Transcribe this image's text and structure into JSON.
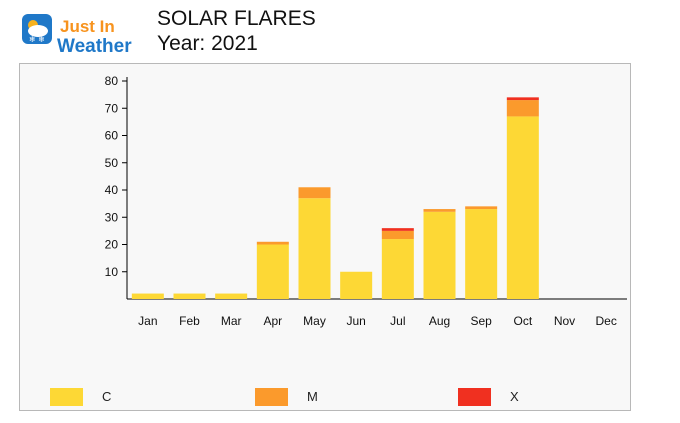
{
  "header": {
    "logo_text": [
      "Just In",
      "Weather"
    ],
    "title": "SOLAR FLARES",
    "subtitle": "Year: 2021"
  },
  "colors": {
    "C": "#fdd835",
    "M": "#fb9a2c",
    "X": "#f03020",
    "logo_blue": "#1f78c8",
    "logo_orange": "#f7931e",
    "panel_bg": "#f8f8f8"
  },
  "chart_data": {
    "type": "bar",
    "stacked": true,
    "title": "SOLAR FLARES",
    "subtitle": "Year: 2021",
    "categories": [
      "Jan",
      "Feb",
      "Mar",
      "Apr",
      "May",
      "Jun",
      "Jul",
      "Aug",
      "Sep",
      "Oct",
      "Nov",
      "Dec"
    ],
    "series": [
      {
        "name": "C",
        "color": "#fdd835",
        "values": [
          2,
          2,
          2,
          20,
          37,
          10,
          22,
          32,
          33,
          67,
          0,
          0
        ]
      },
      {
        "name": "M",
        "color": "#fb9a2c",
        "values": [
          0,
          0,
          0,
          1,
          4,
          0,
          3,
          1,
          1,
          6,
          0,
          0
        ]
      },
      {
        "name": "X",
        "color": "#f03020",
        "values": [
          0,
          0,
          0,
          0,
          0,
          0,
          1,
          0,
          0,
          1,
          0,
          0
        ]
      }
    ],
    "yticks": [
      10,
      20,
      30,
      40,
      50,
      60,
      70,
      80
    ],
    "ylim": [
      0,
      80
    ],
    "grid": false,
    "legend_position": "bottom"
  }
}
